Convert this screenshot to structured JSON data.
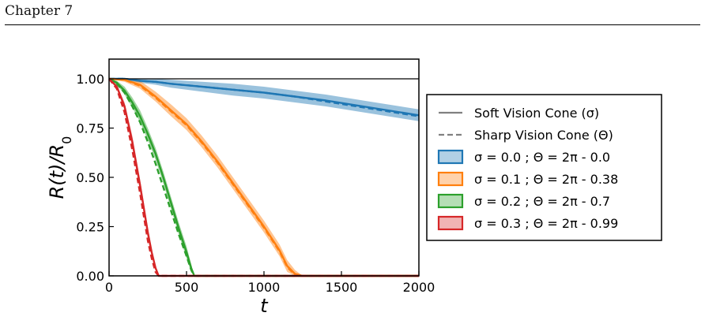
{
  "page": {
    "header": "Chapter 7"
  },
  "chart_data": {
    "type": "line",
    "xlabel": "t",
    "ylabel": "R(t)/R",
    "ylabel_sub": "0",
    "xlim": [
      0,
      2000
    ],
    "ylim": [
      0,
      1.1
    ],
    "xticks": [
      0,
      500,
      1000,
      1500,
      2000
    ],
    "xtick_labels": [
      "0",
      "500",
      "1000",
      "1500",
      "2000"
    ],
    "yticks": [
      0.0,
      0.25,
      0.5,
      0.75,
      1.0
    ],
    "ytick_labels": [
      "0.00",
      "0.25",
      "0.50",
      "0.75",
      "1.00"
    ],
    "grid": false,
    "reference_line": 1.0,
    "legend_position": "outside-right",
    "legend": [
      {
        "label": "Soft Vision Cone (σ)",
        "style": "solid",
        "color": "#808080"
      },
      {
        "label": "Sharp Vision Cone (Θ)",
        "style": "dashed",
        "color": "#808080"
      },
      {
        "label": "σ = 0.0 ; Θ = 2π - 0.0",
        "style": "patch",
        "color": "#1f77b4"
      },
      {
        "label": "σ = 0.1 ; Θ = 2π - 0.38",
        "style": "patch",
        "color": "#ff7f0e"
      },
      {
        "label": "σ = 0.2 ; Θ = 2π - 0.7",
        "style": "patch",
        "color": "#2ca02c"
      },
      {
        "label": "σ = 0.3 ; Θ = 2π - 0.99",
        "style": "patch",
        "color": "#d62728"
      }
    ],
    "series": [
      {
        "name": "σ = 0.0 ; Θ = 2π - 0.0",
        "color": "#1f77b4",
        "x": [
          0,
          100,
          200,
          300,
          400,
          600,
          800,
          1000,
          1200,
          1400,
          1600,
          1800,
          2000
        ],
        "soft": [
          1.0,
          1.0,
          0.99,
          0.985,
          0.975,
          0.96,
          0.945,
          0.93,
          0.91,
          0.89,
          0.865,
          0.84,
          0.815
        ],
        "sharp": [
          1.0,
          1.0,
          0.99,
          0.985,
          0.975,
          0.96,
          0.945,
          0.93,
          0.91,
          0.885,
          0.86,
          0.835,
          0.81
        ],
        "band": [
          0.0,
          0.005,
          0.01,
          0.015,
          0.02,
          0.025,
          0.03,
          0.03,
          0.03,
          0.03,
          0.03,
          0.03,
          0.03
        ]
      },
      {
        "name": "σ = 0.1 ; Θ = 2π - 0.38",
        "color": "#ff7f0e",
        "x": [
          0,
          100,
          200,
          300,
          400,
          500,
          600,
          700,
          800,
          900,
          1000,
          1050,
          1100,
          1150,
          1200,
          1250,
          1300,
          2000
        ],
        "soft": [
          1.0,
          0.995,
          0.97,
          0.91,
          0.84,
          0.77,
          0.68,
          0.58,
          0.47,
          0.36,
          0.25,
          0.19,
          0.13,
          0.05,
          0.01,
          0.0,
          0.0,
          0.0
        ],
        "sharp": [
          1.0,
          0.995,
          0.965,
          0.905,
          0.835,
          0.765,
          0.675,
          0.575,
          0.465,
          0.355,
          0.245,
          0.185,
          0.125,
          0.045,
          0.005,
          0.0,
          0.0,
          0.0
        ],
        "band": [
          0.0,
          0.01,
          0.02,
          0.025,
          0.03,
          0.03,
          0.03,
          0.03,
          0.03,
          0.03,
          0.03,
          0.03,
          0.03,
          0.03,
          0.02,
          0.0,
          0.0,
          0.0
        ]
      },
      {
        "name": "σ = 0.2 ; Θ = 2π - 0.7",
        "color": "#2ca02c",
        "x": [
          0,
          50,
          100,
          150,
          200,
          250,
          300,
          350,
          400,
          450,
          500,
          530,
          550,
          570,
          600,
          2000
        ],
        "soft": [
          1.0,
          0.98,
          0.94,
          0.88,
          0.81,
          0.72,
          0.62,
          0.5,
          0.37,
          0.24,
          0.12,
          0.04,
          0.0,
          0.0,
          0.0,
          0.0
        ],
        "sharp": [
          1.0,
          0.975,
          0.93,
          0.86,
          0.78,
          0.68,
          0.57,
          0.45,
          0.33,
          0.21,
          0.1,
          0.03,
          0.0,
          0.0,
          0.0,
          0.0
        ],
        "band": [
          0.0,
          0.01,
          0.02,
          0.025,
          0.03,
          0.03,
          0.03,
          0.03,
          0.03,
          0.03,
          0.03,
          0.02,
          0.0,
          0.0,
          0.0,
          0.0
        ]
      },
      {
        "name": "σ = 0.3 ; Θ = 2π - 0.99",
        "color": "#d62728",
        "x": [
          0,
          50,
          100,
          150,
          200,
          250,
          275,
          300,
          320,
          340,
          2000
        ],
        "soft": [
          1.0,
          0.96,
          0.86,
          0.68,
          0.46,
          0.22,
          0.12,
          0.04,
          0.0,
          0.0,
          0.0
        ],
        "sharp": [
          1.0,
          0.95,
          0.83,
          0.64,
          0.42,
          0.18,
          0.09,
          0.02,
          0.0,
          0.0,
          0.0
        ],
        "band": [
          0.0,
          0.01,
          0.02,
          0.03,
          0.03,
          0.03,
          0.02,
          0.01,
          0.0,
          0.0,
          0.0
        ]
      }
    ]
  }
}
